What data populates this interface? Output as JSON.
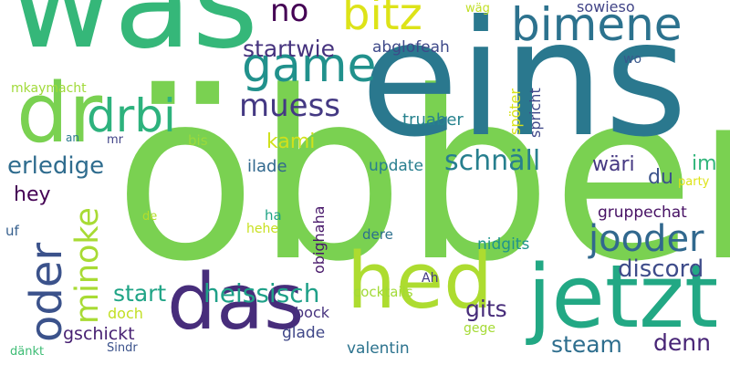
{
  "words": [
    {
      "text": "öbber",
      "color": "#7ad151"
    },
    {
      "text": "eins",
      "color": "#2a788e"
    },
    {
      "text": "was",
      "color": "#35b779"
    },
    {
      "text": "jetzt",
      "color": "#22a884"
    },
    {
      "text": "das",
      "color": "#472d7b"
    },
    {
      "text": "hed",
      "color": "#addc30"
    },
    {
      "text": "dr",
      "color": "#7ad151"
    },
    {
      "text": "drbi",
      "color": "#2db27d"
    },
    {
      "text": "game",
      "color": "#21918c"
    },
    {
      "text": "bimene",
      "color": "#2c728e"
    },
    {
      "text": "bitz",
      "color": "#dde318"
    },
    {
      "text": "oder",
      "color": "#3b528b"
    },
    {
      "text": "jooder",
      "color": "#31688e"
    },
    {
      "text": "muess",
      "color": "#443983"
    },
    {
      "text": "minoke",
      "color": "#a8db34"
    },
    {
      "text": "no",
      "color": "#440154"
    },
    {
      "text": "schnäll",
      "color": "#277f8e"
    },
    {
      "text": "erledige",
      "color": "#2f6c8e"
    },
    {
      "text": "heissisch",
      "color": "#1fa088"
    },
    {
      "text": "discord",
      "color": "#3e4c8a"
    },
    {
      "text": "startwie",
      "color": "#46337e"
    },
    {
      "text": "steam",
      "color": "#2e6e8e"
    },
    {
      "text": "denn",
      "color": "#482576"
    },
    {
      "text": "start",
      "color": "#20a486"
    },
    {
      "text": "gits",
      "color": "#472c7a"
    },
    {
      "text": "kami",
      "color": "#d0e11c"
    },
    {
      "text": "im",
      "color": "#31b57b"
    },
    {
      "text": "wäri",
      "color": "#453882"
    },
    {
      "text": "du",
      "color": "#3b528b"
    },
    {
      "text": "hey",
      "color": "#440154"
    },
    {
      "text": "abglofeah",
      "color": "#3e4989"
    },
    {
      "text": "truaber",
      "color": "#26828e"
    },
    {
      "text": "update",
      "color": "#277e8e"
    },
    {
      "text": "ilade",
      "color": "#31688e"
    },
    {
      "text": "gruppechat",
      "color": "#471164"
    },
    {
      "text": "nidgits",
      "color": "#1f948c"
    },
    {
      "text": "obighaha",
      "color": "#48186a"
    },
    {
      "text": "valentin",
      "color": "#2c738e"
    },
    {
      "text": "gschickt",
      "color": "#482173"
    },
    {
      "text": "glade",
      "color": "#3f4788"
    },
    {
      "text": "bock",
      "color": "#46327e"
    },
    {
      "text": "doch",
      "color": "#c2df23"
    },
    {
      "text": "sowieso",
      "color": "#414487"
    },
    {
      "text": "spöter",
      "color": "#d8e219"
    },
    {
      "text": "spricht",
      "color": "#3f4889"
    },
    {
      "text": "wo",
      "color": "#38588c"
    },
    {
      "text": "wäg",
      "color": "#c0df25"
    },
    {
      "text": "mkaymacht",
      "color": "#a0da39"
    },
    {
      "text": "an",
      "color": "#2a788e"
    },
    {
      "text": "mr",
      "color": "#414487"
    },
    {
      "text": "bis",
      "color": "#9bd93c"
    },
    {
      "text": "uf",
      "color": "#355f8d"
    },
    {
      "text": "de",
      "color": "#b5de2b"
    },
    {
      "text": "ha",
      "color": "#20a386"
    },
    {
      "text": "hehe",
      "color": "#c8e020"
    },
    {
      "text": "dere",
      "color": "#2d708e"
    },
    {
      "text": "Ah",
      "color": "#443a83"
    },
    {
      "text": "cocktails",
      "color": "#a2da37"
    },
    {
      "text": "gege",
      "color": "#a5db36"
    },
    {
      "text": "party",
      "color": "#dde318"
    },
    {
      "text": "dänkt",
      "color": "#3dbc74"
    },
    {
      "text": "Sindr",
      "color": "#3b528b"
    }
  ]
}
